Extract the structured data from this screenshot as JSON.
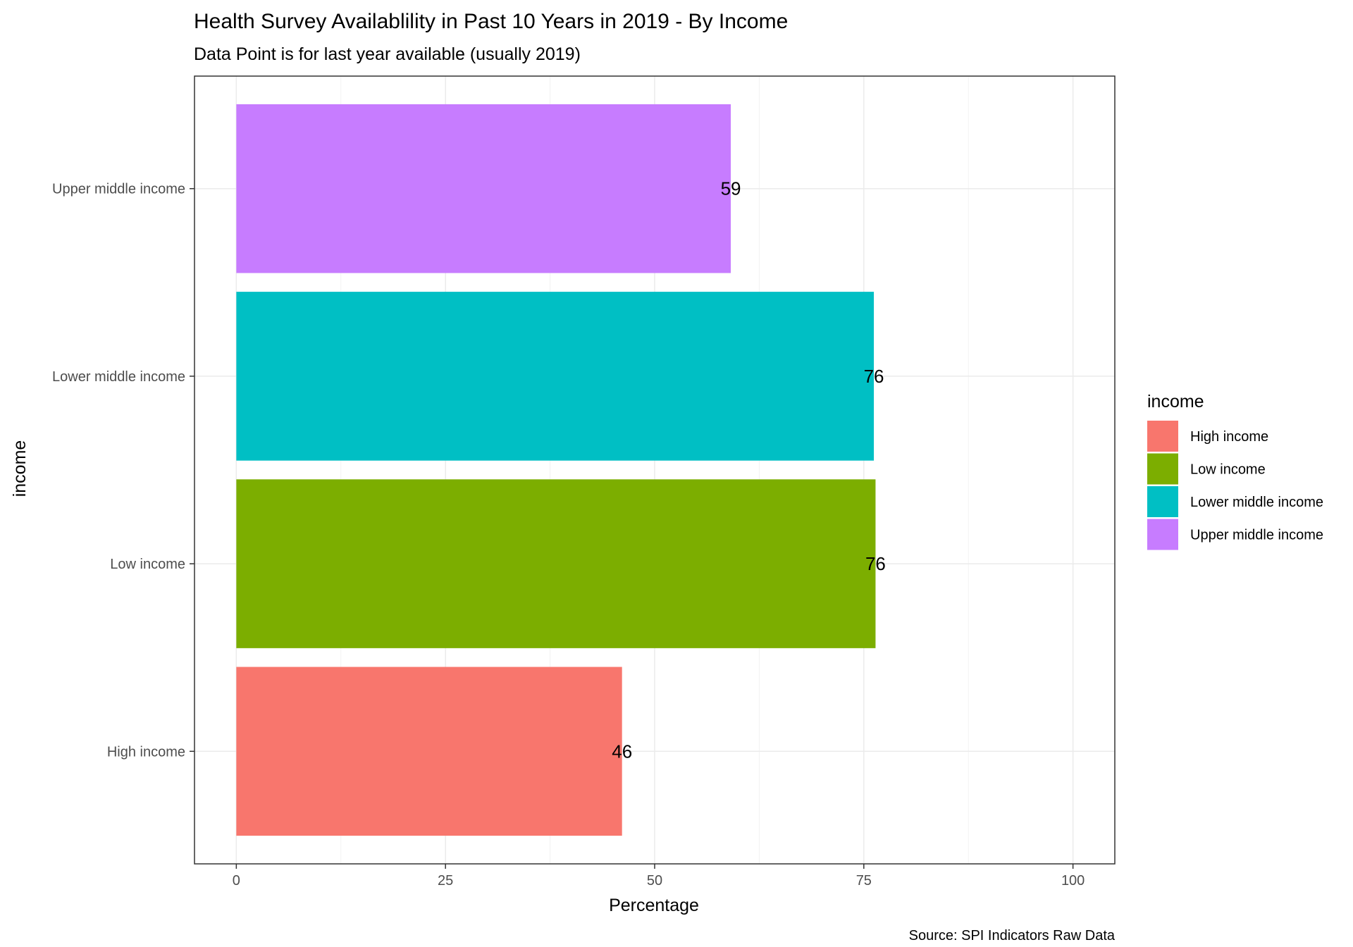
{
  "chart_data": {
    "type": "bar",
    "orientation": "horizontal",
    "title": "Health Survey Availablility in Past 10 Years in 2019 - By Income",
    "subtitle": "Data Point is for last year available (usually 2019)",
    "xlabel": "Percentage",
    "ylabel": "income",
    "caption": "Source: SPI Indicators Raw Data",
    "categories": [
      "High income",
      "Low income",
      "Lower middle income",
      "Upper middle income"
    ],
    "values": [
      46.1,
      76.4,
      76.2,
      59.1
    ],
    "value_labels": [
      "46",
      "76",
      "76",
      "59"
    ],
    "xlim": [
      0,
      100
    ],
    "x_ticks": [
      0,
      25,
      50,
      75,
      100
    ],
    "x_tick_labels": [
      "0",
      "25",
      "50",
      "75",
      "100"
    ],
    "grid": true,
    "legend": {
      "title": "income",
      "placement": "right",
      "entries": [
        "High income",
        "Low income",
        "Lower middle income",
        "Upper middle income"
      ]
    },
    "colors": [
      "#F8766D",
      "#7CAE00",
      "#00BFC4",
      "#C77CFF"
    ]
  }
}
